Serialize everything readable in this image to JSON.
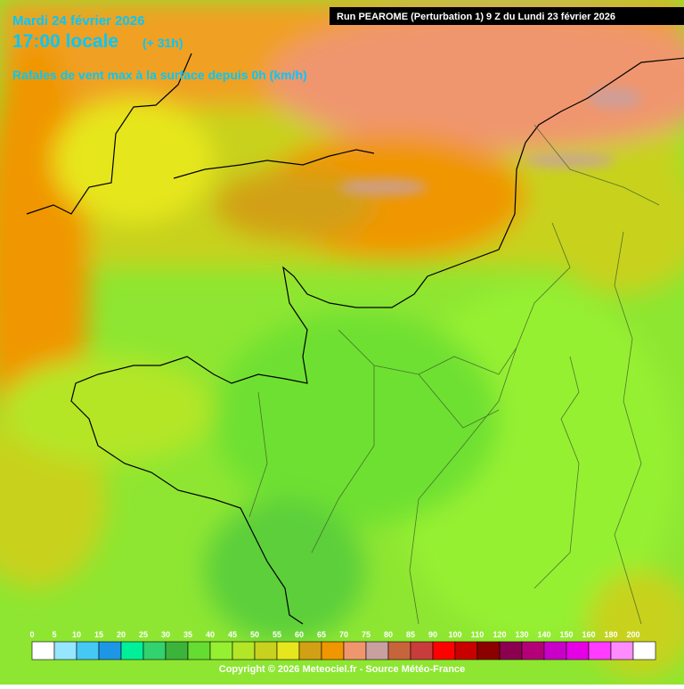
{
  "header": {
    "date": "Mardi 24 février 2026",
    "time": "17:00 locale",
    "lead": "(+ 31h)",
    "parameter": "Rafales de vent max à la surface depuis 0h (km/h)",
    "run": "Run PEAROME (Perturbation 1) 9 Z du Lundi 23 février 2026"
  },
  "legend": {
    "items": [
      {
        "value": 0,
        "color": "#ffffff"
      },
      {
        "value": 5,
        "color": "#96e6ff"
      },
      {
        "value": 10,
        "color": "#46c8f5"
      },
      {
        "value": 15,
        "color": "#1e96e6"
      },
      {
        "value": 20,
        "color": "#00f09a"
      },
      {
        "value": 25,
        "color": "#32d26e"
      },
      {
        "value": 30,
        "color": "#3cb43c"
      },
      {
        "value": 35,
        "color": "#64dc32"
      },
      {
        "value": 40,
        "color": "#96f032"
      },
      {
        "value": 45,
        "color": "#b4e628"
      },
      {
        "value": 50,
        "color": "#c8d21e"
      },
      {
        "value": 55,
        "color": "#e6e61e"
      },
      {
        "value": 60,
        "color": "#d2a014"
      },
      {
        "value": 65,
        "color": "#f09600"
      },
      {
        "value": 70,
        "color": "#f0966e"
      },
      {
        "value": 75,
        "color": "#c8a0a0"
      },
      {
        "value": 80,
        "color": "#c8643c"
      },
      {
        "value": 85,
        "color": "#c83c3c"
      },
      {
        "value": 90,
        "color": "#ff0000"
      },
      {
        "value": 100,
        "color": "#c80000"
      },
      {
        "value": 110,
        "color": "#8c0000"
      },
      {
        "value": 120,
        "color": "#8c0050"
      },
      {
        "value": 130,
        "color": "#b40078"
      },
      {
        "value": 140,
        "color": "#c800c8"
      },
      {
        "value": 150,
        "color": "#e600e6"
      },
      {
        "value": 160,
        "color": "#ff3cff"
      },
      {
        "value": 180,
        "color": "#ff8cff"
      },
      {
        "value": 200,
        "color": "#ffffff"
      }
    ]
  },
  "footer": {
    "copyright": "Copyright © 2026 Meteociel.fr - Source Météo-France"
  }
}
